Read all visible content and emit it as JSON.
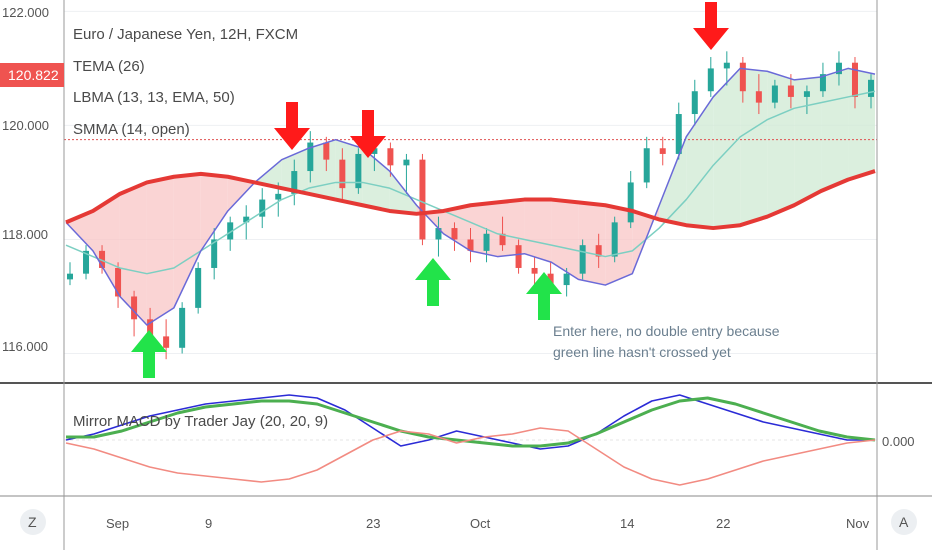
{
  "chart_data": {
    "type": "line",
    "title": "Euro / Japanese Yen, 12H, FXCM",
    "price_axis": [
      "122.000",
      "120.000",
      "118.000",
      "116.000"
    ],
    "price_range": [
      115.5,
      122.2
    ],
    "current_price": "120.822",
    "reference_price": 119.75,
    "date_axis": [
      "Sep",
      "9",
      "23",
      "Oct",
      "14",
      "22",
      "Nov"
    ],
    "legend": [
      "TEMA (26)",
      "LBMA (13, 13, EMA, 50)",
      "SMMA (14, open)"
    ],
    "indicator_label": "Mirror MACD by Trader Jay (20, 20, 9)",
    "indicator_value": "0.000",
    "annotation": [
      "Enter here, no double entry because",
      "green line hasn't crossed yet"
    ],
    "series": [
      {
        "name": "SMMA (14, open)",
        "color": "#e53935",
        "values": [
          118.3,
          118.5,
          118.8,
          119.0,
          119.1,
          119.15,
          119.1,
          119.0,
          118.9,
          118.8,
          118.7,
          118.6,
          118.5,
          118.45,
          118.5,
          118.6,
          118.65,
          118.7,
          118.7,
          118.65,
          118.6,
          118.5,
          118.35,
          118.25,
          118.2,
          118.25,
          118.4,
          118.6,
          118.85,
          119.05,
          119.2
        ]
      },
      {
        "name": "TEMA (26)",
        "color": "#6a6ad8",
        "values": [
          118.3,
          117.8,
          117.0,
          116.5,
          116.8,
          117.8,
          118.5,
          119.0,
          119.4,
          119.6,
          119.75,
          119.6,
          119.2,
          118.6,
          118.1,
          117.8,
          117.7,
          117.75,
          117.6,
          117.3,
          117.2,
          117.4,
          118.6,
          119.8,
          120.5,
          121.0,
          120.95,
          120.8,
          120.85,
          121.0,
          120.9
        ]
      },
      {
        "name": "LBMA (13, 13, EMA, 50)",
        "color": "#7ccfc2",
        "values": [
          117.9,
          117.7,
          117.5,
          117.4,
          117.5,
          117.8,
          118.1,
          118.4,
          118.7,
          118.9,
          119.0,
          119.0,
          118.9,
          118.7,
          118.5,
          118.3,
          118.1,
          118.0,
          117.9,
          117.8,
          117.7,
          117.8,
          118.2,
          118.7,
          119.3,
          119.8,
          120.1,
          120.3,
          120.4,
          120.5,
          120.6
        ]
      }
    ],
    "macd_series": [
      {
        "color": "#2b2bd6",
        "values": [
          0.0,
          0.2,
          0.5,
          0.8,
          1.0,
          1.2,
          1.3,
          1.4,
          1.5,
          1.4,
          1.0,
          0.4,
          -0.2,
          0.0,
          0.3,
          0.1,
          -0.1,
          -0.3,
          -0.2,
          0.2,
          0.8,
          1.3,
          1.5,
          1.2,
          0.9,
          0.6,
          0.4,
          0.2,
          0.0,
          0.0
        ]
      },
      {
        "color": "#4caf50",
        "values": [
          0.1,
          0.1,
          0.3,
          0.6,
          0.9,
          1.1,
          1.2,
          1.3,
          1.3,
          1.2,
          0.9,
          0.6,
          0.3,
          0.1,
          0.0,
          -0.1,
          -0.2,
          -0.2,
          -0.1,
          0.2,
          0.6,
          1.0,
          1.3,
          1.4,
          1.2,
          0.9,
          0.6,
          0.3,
          0.1,
          0.0
        ]
      },
      {
        "color": "#f28b82",
        "values": [
          -0.1,
          -0.3,
          -0.6,
          -0.9,
          -1.1,
          -1.2,
          -1.3,
          -1.4,
          -1.3,
          -1.0,
          -0.5,
          0.0,
          0.3,
          0.2,
          -0.1,
          0.1,
          0.2,
          0.4,
          0.3,
          -0.3,
          -0.9,
          -1.3,
          -1.5,
          -1.3,
          -1.0,
          -0.7,
          -0.5,
          -0.3,
          -0.1,
          0.0
        ]
      }
    ],
    "candles": [
      [
        117.3,
        117.6,
        117.2,
        117.4
      ],
      [
        117.4,
        117.9,
        117.3,
        117.8
      ],
      [
        117.8,
        117.9,
        117.4,
        117.5
      ],
      [
        117.5,
        117.6,
        116.8,
        117.0
      ],
      [
        117.0,
        117.1,
        116.3,
        116.6
      ],
      [
        116.6,
        116.8,
        116.2,
        116.3
      ],
      [
        116.3,
        116.6,
        115.9,
        116.1
      ],
      [
        116.1,
        116.9,
        116.0,
        116.8
      ],
      [
        116.8,
        117.6,
        116.7,
        117.5
      ],
      [
        117.5,
        118.2,
        117.3,
        118.0
      ],
      [
        118.0,
        118.4,
        117.8,
        118.3
      ],
      [
        118.3,
        118.6,
        118.0,
        118.4
      ],
      [
        118.4,
        118.9,
        118.2,
        118.7
      ],
      [
        118.7,
        119.0,
        118.4,
        118.8
      ],
      [
        118.8,
        119.4,
        118.6,
        119.2
      ],
      [
        119.2,
        119.9,
        119.0,
        119.7
      ],
      [
        119.7,
        119.8,
        119.2,
        119.4
      ],
      [
        119.4,
        119.6,
        118.7,
        118.9
      ],
      [
        118.9,
        119.6,
        118.8,
        119.5
      ],
      [
        119.5,
        119.8,
        119.2,
        119.6
      ],
      [
        119.6,
        119.7,
        119.1,
        119.3
      ],
      [
        119.3,
        119.5,
        118.8,
        119.4
      ],
      [
        119.4,
        119.5,
        117.9,
        118.0
      ],
      [
        118.0,
        118.4,
        117.7,
        118.2
      ],
      [
        118.2,
        118.3,
        117.8,
        118.0
      ],
      [
        118.0,
        118.2,
        117.6,
        117.8
      ],
      [
        117.8,
        118.2,
        117.6,
        118.1
      ],
      [
        118.1,
        118.4,
        117.8,
        117.9
      ],
      [
        117.9,
        118.0,
        117.4,
        117.5
      ],
      [
        117.5,
        117.7,
        117.2,
        117.4
      ],
      [
        117.4,
        117.6,
        117.1,
        117.2
      ],
      [
        117.2,
        117.5,
        117.0,
        117.4
      ],
      [
        117.4,
        118.0,
        117.3,
        117.9
      ],
      [
        117.9,
        118.1,
        117.5,
        117.7
      ],
      [
        117.7,
        118.4,
        117.6,
        118.3
      ],
      [
        118.3,
        119.2,
        118.2,
        119.0
      ],
      [
        119.0,
        119.8,
        118.9,
        119.6
      ],
      [
        119.6,
        119.8,
        119.3,
        119.5
      ],
      [
        119.5,
        120.4,
        119.4,
        120.2
      ],
      [
        120.2,
        120.8,
        120.0,
        120.6
      ],
      [
        120.6,
        121.2,
        120.5,
        121.0
      ],
      [
        121.0,
        121.3,
        120.7,
        121.1
      ],
      [
        121.1,
        121.2,
        120.4,
        120.6
      ],
      [
        120.6,
        120.9,
        120.2,
        120.4
      ],
      [
        120.4,
        120.8,
        120.3,
        120.7
      ],
      [
        120.7,
        120.9,
        120.3,
        120.5
      ],
      [
        120.5,
        120.7,
        120.2,
        120.6
      ],
      [
        120.6,
        121.1,
        120.5,
        120.9
      ],
      [
        120.9,
        121.3,
        120.7,
        121.1
      ],
      [
        121.1,
        121.2,
        120.3,
        120.5
      ],
      [
        120.5,
        120.9,
        120.3,
        120.8
      ]
    ]
  },
  "colors": {
    "bull": "#26a69a",
    "bear": "#ef5350",
    "arrow_down": "#ff1a1a",
    "arrow_up": "#22e34a",
    "fill_pink": "#f8c5c5",
    "fill_green": "#cfe9d3",
    "price_tag": "#ef5350"
  },
  "controls": {
    "zoom_label": "Z",
    "auto_label": "A"
  }
}
